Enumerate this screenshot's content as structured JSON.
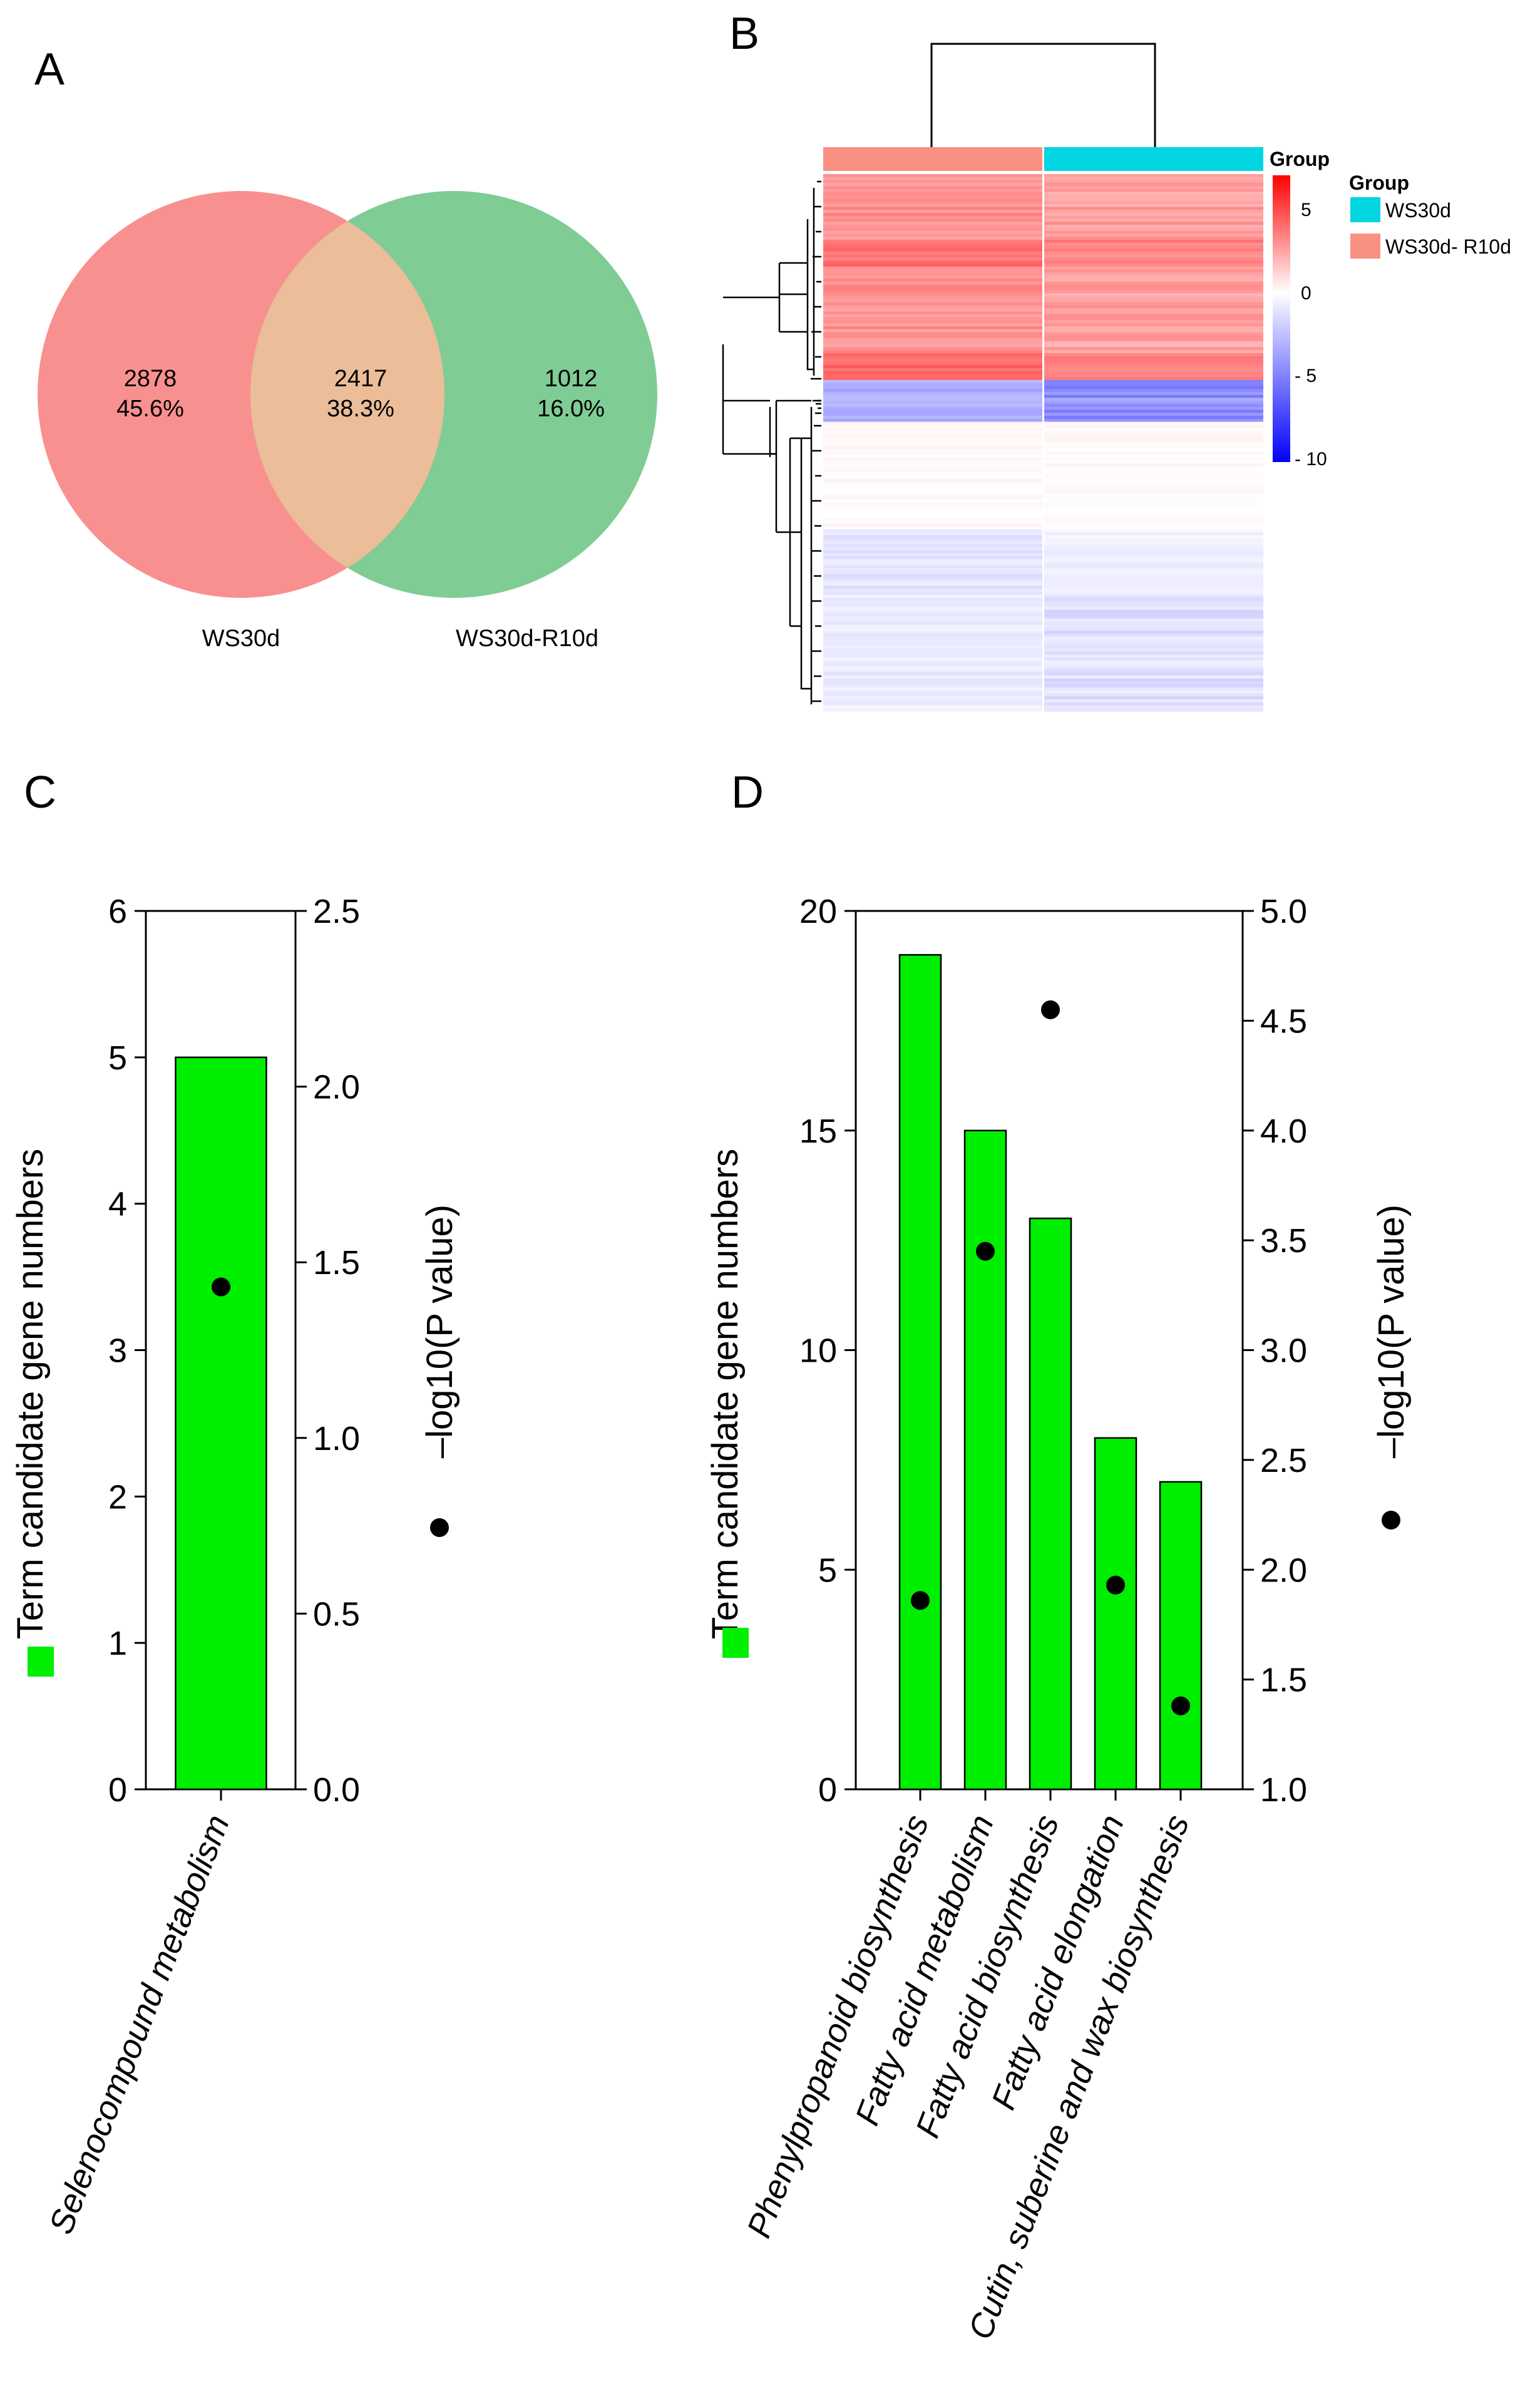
{
  "panels": {
    "a": "A",
    "b": "B",
    "c": "C",
    "d": "D"
  },
  "venn": {
    "sets": [
      {
        "name": "WS30d",
        "color": "#f99090"
      },
      {
        "name": "WS30d-R10d",
        "color": "#7fcc95"
      }
    ],
    "overlap_color": "#ebbd98",
    "regions": [
      {
        "count": "2878",
        "percent": "45.6%"
      },
      {
        "count": "2417",
        "percent": "38.3%"
      },
      {
        "count": "1012",
        "percent": "16.0%"
      }
    ]
  },
  "heatmap": {
    "annotation_label": "Group",
    "legend_title": "Group",
    "legend": [
      {
        "label": "WS30d",
        "color": "#00d5e0"
      },
      {
        "label": "WS30d- R10d",
        "color": "#f99082"
      }
    ],
    "columns": [
      {
        "group": "WS30d- R10d",
        "color": "#f99082"
      },
      {
        "group": "WS30d",
        "color": "#00d5e0"
      }
    ],
    "scale": {
      "min": -10,
      "max": 7,
      "ticks": [
        "5",
        "0",
        "- 5",
        "- 10"
      ],
      "low_color": "#0000ff",
      "mid_color": "#ffffff",
      "high_color": "#ff0000"
    }
  },
  "chart_data": [
    {
      "type": "bar",
      "panel": "C",
      "categories": [
        "Selenocompound metabolism"
      ],
      "series": [
        {
          "name": "Term candidate gene numbers",
          "axis": "left",
          "marker": "bar",
          "color": "#00ee00",
          "values": [
            5
          ]
        },
        {
          "name": "-log10(P value)",
          "axis": "right",
          "marker": "dot",
          "color": "#000000",
          "values": [
            1.43
          ]
        }
      ],
      "ylabel": "Term candidate gene numbers",
      "y2label": "–log10(P value)",
      "ylim": [
        0,
        6
      ],
      "y2lim": [
        0,
        2.5
      ],
      "yticks": [
        "0",
        "1",
        "2",
        "3",
        "4",
        "5",
        "6"
      ],
      "y2ticks": [
        "0.0",
        "0.5",
        "1.0",
        "1.5",
        "2.0",
        "2.5"
      ]
    },
    {
      "type": "bar",
      "panel": "D",
      "categories": [
        "Phenylpropanoid biosynthesis",
        "Fatty acid metabolism",
        "Fatty acid biosynthesis",
        "Fatty acid elongation",
        "Cutin, suberine and wax biosynthesis"
      ],
      "series": [
        {
          "name": "Term candidate gene numbers",
          "axis": "left",
          "marker": "bar",
          "color": "#00ee00",
          "values": [
            19,
            15,
            13,
            8,
            7
          ]
        },
        {
          "name": "-log10(P value)",
          "axis": "right",
          "marker": "dot",
          "color": "#000000",
          "values": [
            1.86,
            3.45,
            4.55,
            1.93,
            1.38
          ]
        }
      ],
      "ylabel": "Term candidate gene numbers",
      "y2label": "–log10(P value)",
      "ylim": [
        0,
        20
      ],
      "y2lim": [
        1.0,
        5.0
      ],
      "yticks": [
        "0",
        "5",
        "10",
        "15",
        "20"
      ],
      "y2ticks": [
        "1.0",
        "1.5",
        "2.0",
        "2.5",
        "3.0",
        "3.5",
        "4.0",
        "4.5",
        "5.0"
      ]
    }
  ]
}
